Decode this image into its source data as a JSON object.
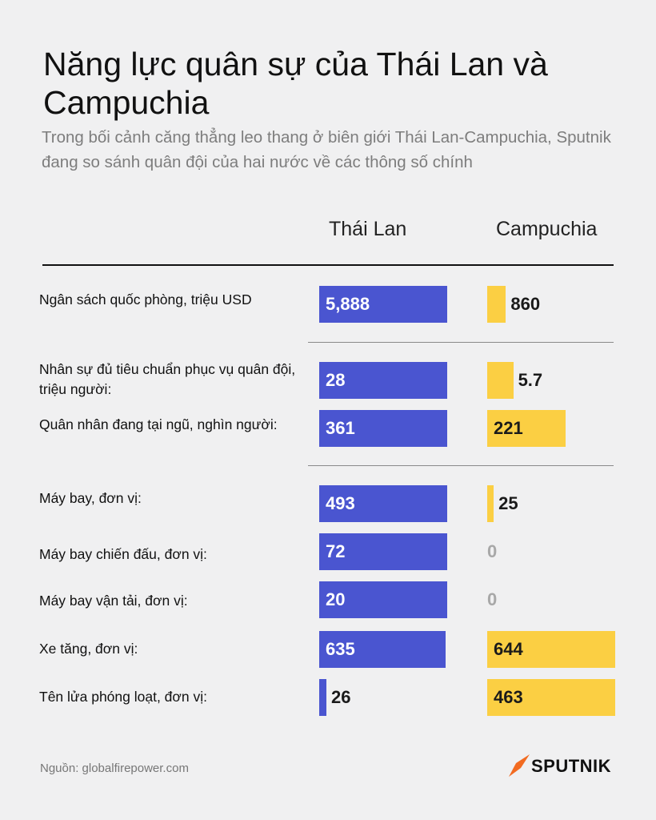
{
  "title": "Năng lực quân sự của Thái Lan và Campuchia",
  "subtitle": "Trong bối cảnh căng thẳng leo thang ở biên giới Thái Lan-Campuchia, Sputnik đang so sánh quân đội của hai nước về các thông số chính",
  "source": "Nguồn: globalfirepower.com",
  "brand": "SPUTNIK",
  "colors": {
    "thailand": "#4a55d0",
    "cambodia": "#fbcf43",
    "background": "#f0f0f1"
  },
  "chart_data": {
    "type": "bar",
    "title": "Năng lực quân sự của Thái Lan và Campuchia",
    "series": [
      {
        "name": "Thái Lan",
        "values": [
          5888,
          28,
          361,
          493,
          72,
          20,
          635,
          26
        ]
      },
      {
        "name": "Campuchia",
        "values": [
          860,
          5.7,
          221,
          25,
          0,
          0,
          644,
          463
        ]
      }
    ],
    "categories": [
      "Ngân sách quốc phòng, triệu USD",
      "Nhân sự đủ tiêu chuẩn phục vụ quân đội, triệu người:",
      "Quân nhân đang tại ngũ, nghìn người:",
      "Máy bay, đơn vị:",
      "Máy bay chiến đấu, đơn vị:",
      "Máy bay vận tải, đơn vị:",
      "Xe tăng, đơn vị:",
      "Tên lửa phóng loạt, đơn vị:"
    ],
    "display_values": [
      [
        "5,888",
        "860"
      ],
      [
        "28",
        "5.7"
      ],
      [
        "361",
        "221"
      ],
      [
        "493",
        "25"
      ],
      [
        "72",
        "0"
      ],
      [
        "20",
        "0"
      ],
      [
        "635",
        "644"
      ],
      [
        "26",
        "463"
      ]
    ]
  }
}
